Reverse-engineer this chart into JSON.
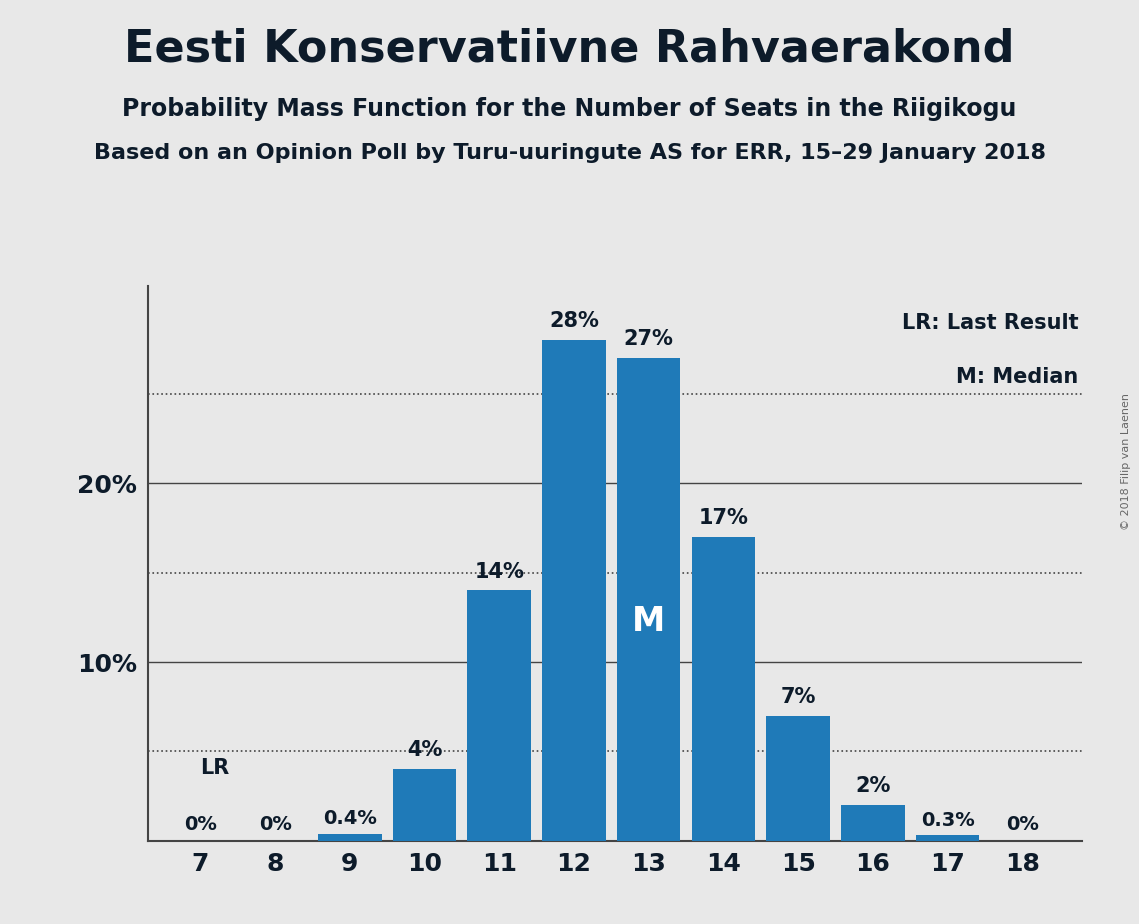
{
  "title": "Eesti Konservatiivne Rahvaerakond",
  "subtitle": "Probability Mass Function for the Number of Seats in the Riigikogu",
  "subsubtitle": "Based on an Opinion Poll by Turu-uuringute AS for ERR, 15–29 January 2018",
  "copyright": "© 2018 Filip van Laenen",
  "seats": [
    7,
    8,
    9,
    10,
    11,
    12,
    13,
    14,
    15,
    16,
    17,
    18
  ],
  "probabilities": [
    0.0,
    0.0,
    0.4,
    4.0,
    14.0,
    28.0,
    27.0,
    17.0,
    7.0,
    2.0,
    0.3,
    0.0
  ],
  "bar_labels": [
    "0%",
    "0%",
    "0.4%",
    "4%",
    "14%",
    "28%",
    "27%",
    "17%",
    "7%",
    "2%",
    "0.3%",
    "0%"
  ],
  "bar_color": "#1f7ab8",
  "background_color": "#e8e8e8",
  "title_color": "#0d1b2a",
  "grid_color": "#444444",
  "median_seat": 13,
  "last_result_seat": 7,
  "legend_lr": "LR: Last Result",
  "legend_m": "M: Median",
  "ylim_max": 31,
  "solid_yticks": [
    10,
    20
  ],
  "dotted_yticks": [
    5,
    15,
    25
  ],
  "ytick_labels_solid": [
    "10%",
    "20%"
  ]
}
